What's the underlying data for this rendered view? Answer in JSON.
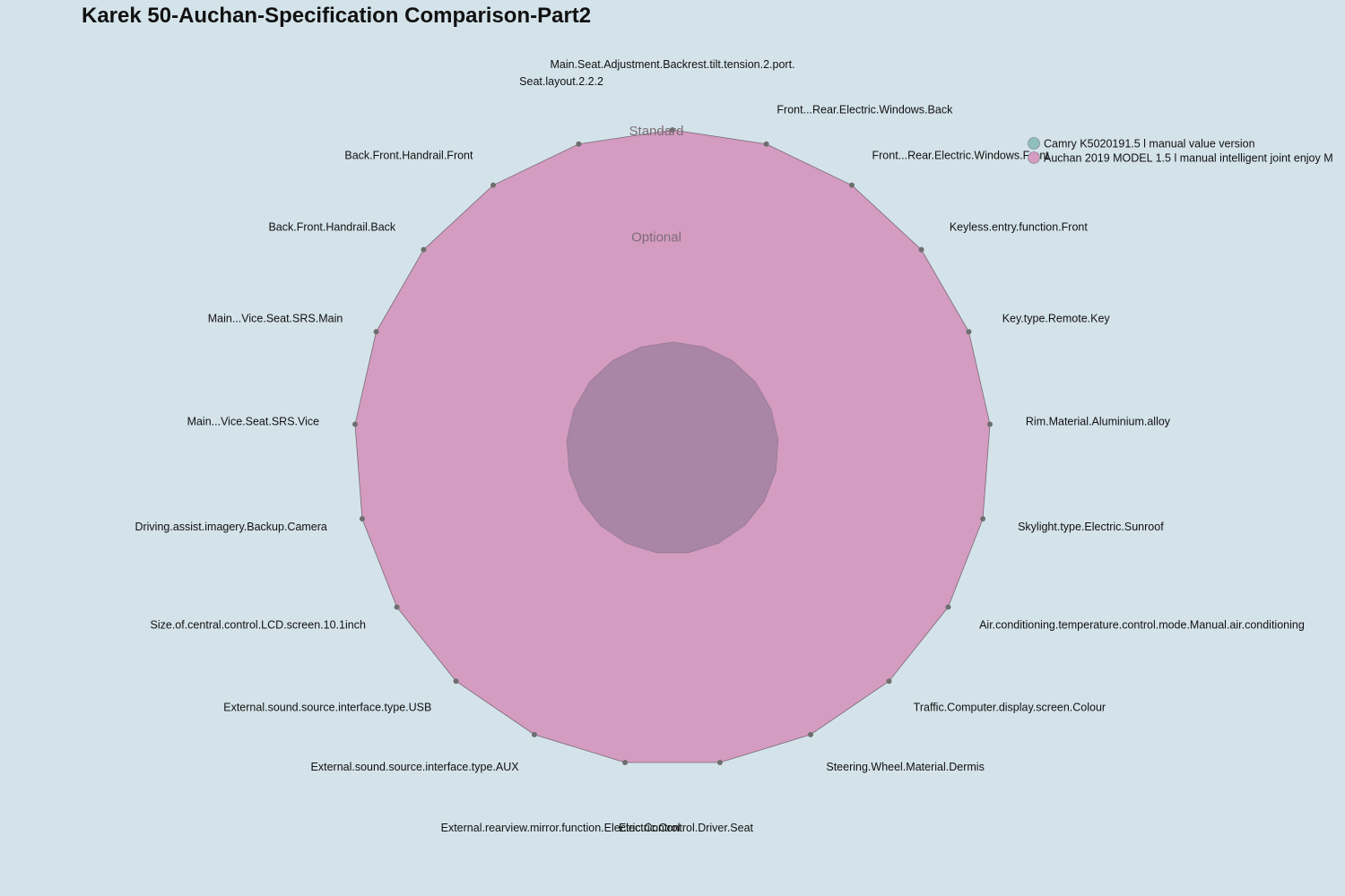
{
  "chart_data": {
    "type": "radar",
    "title": "Karek 50-Auchan-Specification Comparison-Part2",
    "levels": [
      "",
      "Optional",
      "Standard"
    ],
    "axes": [
      "Main.Seat.Adjustment.Backrest.tilt.tension.2.port.",
      "Front...Rear.Electric.Windows.Back",
      "Front...Rear.Electric.Windows.Front",
      "Keyless.entry.function.Front",
      "Key.type.Remote.Key",
      "Rim.Material.Aluminium.alloy",
      "Skylight.type.Electric.Sunroof",
      "Air.conditioning.temperature.control.mode.Manual.air.conditioning",
      "Traffic.Computer.display.screen.Colour",
      "Steering.Wheel.Material.Dermis",
      "Electric.Control.Driver.Seat",
      "External.rearview.mirror.function.Electric.Control",
      "External.sound.source.interface.type.AUX",
      "External.sound.source.interface.type.USB",
      "Size.of.central.control.LCD.screen.10.1inch",
      "Driving.assist.imagery.Backup.Camera",
      "Main...Vice.Seat.SRS.Vice",
      "Main...Vice.Seat.SRS.Main",
      "Back.Front.Handrail.Back",
      "Back.Front.Handrail.Front",
      "Seat.layout.2.2.2"
    ],
    "series": [
      {
        "name": "Camry K5020191.5 l manual value version",
        "color": "#8fbfbe",
        "values": [
          0,
          0,
          0,
          0,
          0,
          0,
          0,
          0,
          0,
          0,
          0,
          0,
          0,
          0,
          0,
          0,
          0,
          0,
          0,
          0,
          0
        ]
      },
      {
        "name": "Auchan 2019 MODEL 1.5 l manual intelligent joint enjoy M",
        "color": "#d39cc0",
        "values": [
          2,
          2,
          2,
          2,
          2,
          2,
          2,
          2,
          2,
          2,
          2,
          2,
          2,
          2,
          2,
          2,
          2,
          2,
          2,
          2,
          2
        ]
      }
    ],
    "legend_position": "top-right"
  }
}
